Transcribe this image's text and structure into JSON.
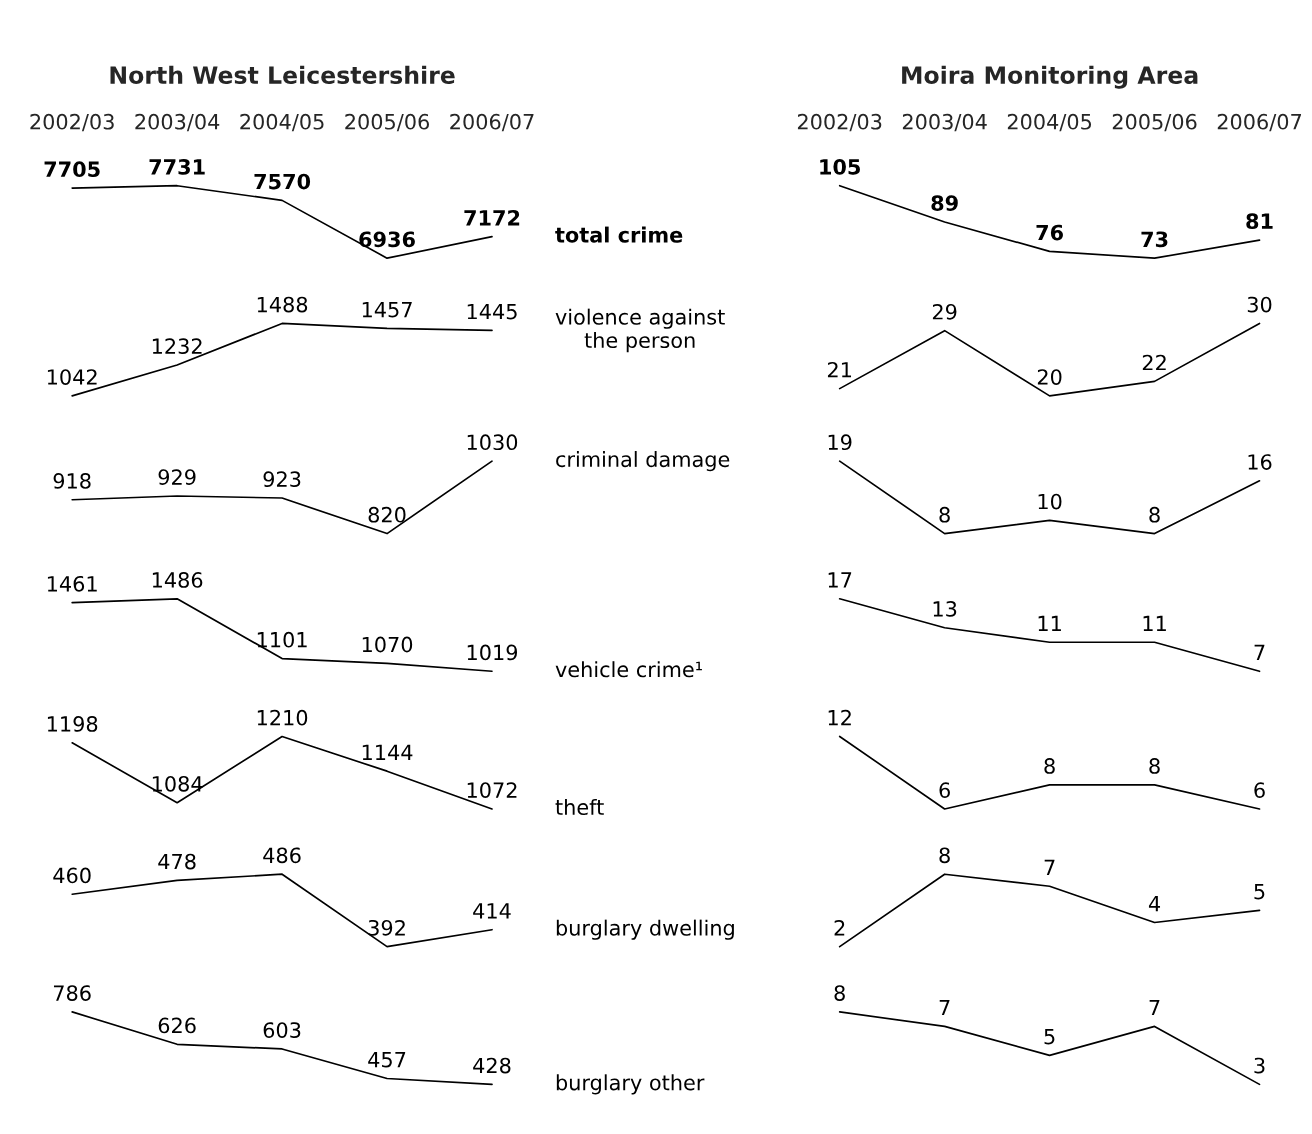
{
  "chart_data": [
    {
      "type": "line",
      "title": "North West Leicestershire",
      "categories": [
        "2002/03",
        "2003/04",
        "2004/05",
        "2005/06",
        "2006/07"
      ],
      "data_labels": true,
      "series": [
        {
          "name": "total crime",
          "color": "#000000",
          "values": [
            7705,
            7731,
            7570,
            6936,
            7172
          ]
        }
      ]
    },
    {
      "type": "line",
      "categories": [
        "2002/03",
        "2003/04",
        "2004/05",
        "2005/06",
        "2006/07"
      ],
      "data_labels": true,
      "tick_labels": false,
      "series": [
        {
          "name": "violence against\nthe person",
          "color": "#000000",
          "values": [
            1042,
            1232,
            1488,
            1457,
            1445
          ]
        }
      ]
    },
    {
      "type": "line",
      "categories": [
        "2002/03",
        "2003/04",
        "2004/05",
        "2005/06",
        "2006/07"
      ],
      "data_labels": true,
      "tick_labels": false,
      "series": [
        {
          "name": "criminal damage",
          "color": "#000000",
          "values": [
            918,
            929,
            923,
            820,
            1030
          ]
        }
      ]
    },
    {
      "type": "line",
      "categories": [
        "2002/03",
        "2003/04",
        "2004/05",
        "2005/06",
        "2006/07"
      ],
      "data_labels": true,
      "tick_labels": false,
      "series": [
        {
          "name": "vehicle crime¹",
          "color": "#000000",
          "values": [
            1461,
            1486,
            1101,
            1070,
            1019
          ]
        }
      ]
    },
    {
      "type": "line",
      "categories": [
        "2002/03",
        "2003/04",
        "2004/05",
        "2005/06",
        "2006/07"
      ],
      "data_labels": true,
      "tick_labels": false,
      "series": [
        {
          "name": "theft",
          "color": "#000000",
          "values": [
            1198,
            1084,
            1210,
            1144,
            1072
          ]
        }
      ]
    },
    {
      "type": "line",
      "categories": [
        "2002/03",
        "2003/04",
        "2004/05",
        "2005/06",
        "2006/07"
      ],
      "data_labels": true,
      "tick_labels": false,
      "series": [
        {
          "name": "burglary dwelling",
          "color": "#000000",
          "values": [
            460,
            478,
            486,
            392,
            414
          ]
        }
      ]
    },
    {
      "type": "line",
      "categories": [
        "2002/03",
        "2003/04",
        "2004/05",
        "2005/06",
        "2006/07"
      ],
      "data_labels": true,
      "tick_labels": false,
      "series": [
        {
          "name": "burglary other",
          "color": "#000000",
          "values": [
            786,
            626,
            603,
            457,
            428
          ]
        }
      ]
    },
    {
      "type": "line",
      "title": "Moira Monitoring Area",
      "categories": [
        "2002/03",
        "2003/04",
        "2004/05",
        "2005/06",
        "2006/07"
      ],
      "data_labels": true,
      "series": [
        {
          "color": "#000000",
          "values": [
            105,
            89,
            76,
            73,
            81
          ]
        }
      ]
    },
    {
      "type": "line",
      "categories": [
        "2002/03",
        "2003/04",
        "2004/05",
        "2005/06",
        "2006/07"
      ],
      "data_labels": true,
      "tick_labels": false,
      "series": [
        {
          "color": "#000000",
          "values": [
            21,
            29,
            20,
            22,
            30
          ]
        }
      ]
    },
    {
      "type": "line",
      "categories": [
        "2002/03",
        "2003/04",
        "2004/05",
        "2005/06",
        "2006/07"
      ],
      "data_labels": true,
      "tick_labels": false,
      "series": [
        {
          "color": "#000000",
          "values": [
            19,
            8,
            10,
            8,
            16
          ]
        }
      ]
    },
    {
      "type": "line",
      "categories": [
        "2002/03",
        "2003/04",
        "2004/05",
        "2005/06",
        "2006/07"
      ],
      "data_labels": true,
      "tick_labels": false,
      "series": [
        {
          "color": "#000000",
          "values": [
            17,
            13,
            11,
            11,
            7
          ]
        }
      ]
    },
    {
      "type": "line",
      "categories": [
        "2002/03",
        "2003/04",
        "2004/05",
        "2005/06",
        "2006/07"
      ],
      "data_labels": true,
      "tick_labels": false,
      "series": [
        {
          "color": "#000000",
          "values": [
            12,
            6,
            8,
            8,
            6
          ]
        }
      ]
    },
    {
      "type": "line",
      "categories": [
        "2002/03",
        "2003/04",
        "2004/05",
        "2005/06",
        "2006/07"
      ],
      "data_labels": true,
      "tick_labels": false,
      "series": [
        {
          "color": "#000000",
          "values": [
            2,
            8,
            7,
            4,
            5
          ]
        }
      ]
    },
    {
      "type": "line",
      "categories": [
        "2002/03",
        "2003/04",
        "2004/05",
        "2005/06",
        "2006/07"
      ],
      "data_labels": true,
      "tick_labels": false,
      "series": [
        {
          "color": "#000000",
          "values": [
            8,
            7,
            5,
            7,
            3
          ]
        }
      ]
    }
  ]
}
